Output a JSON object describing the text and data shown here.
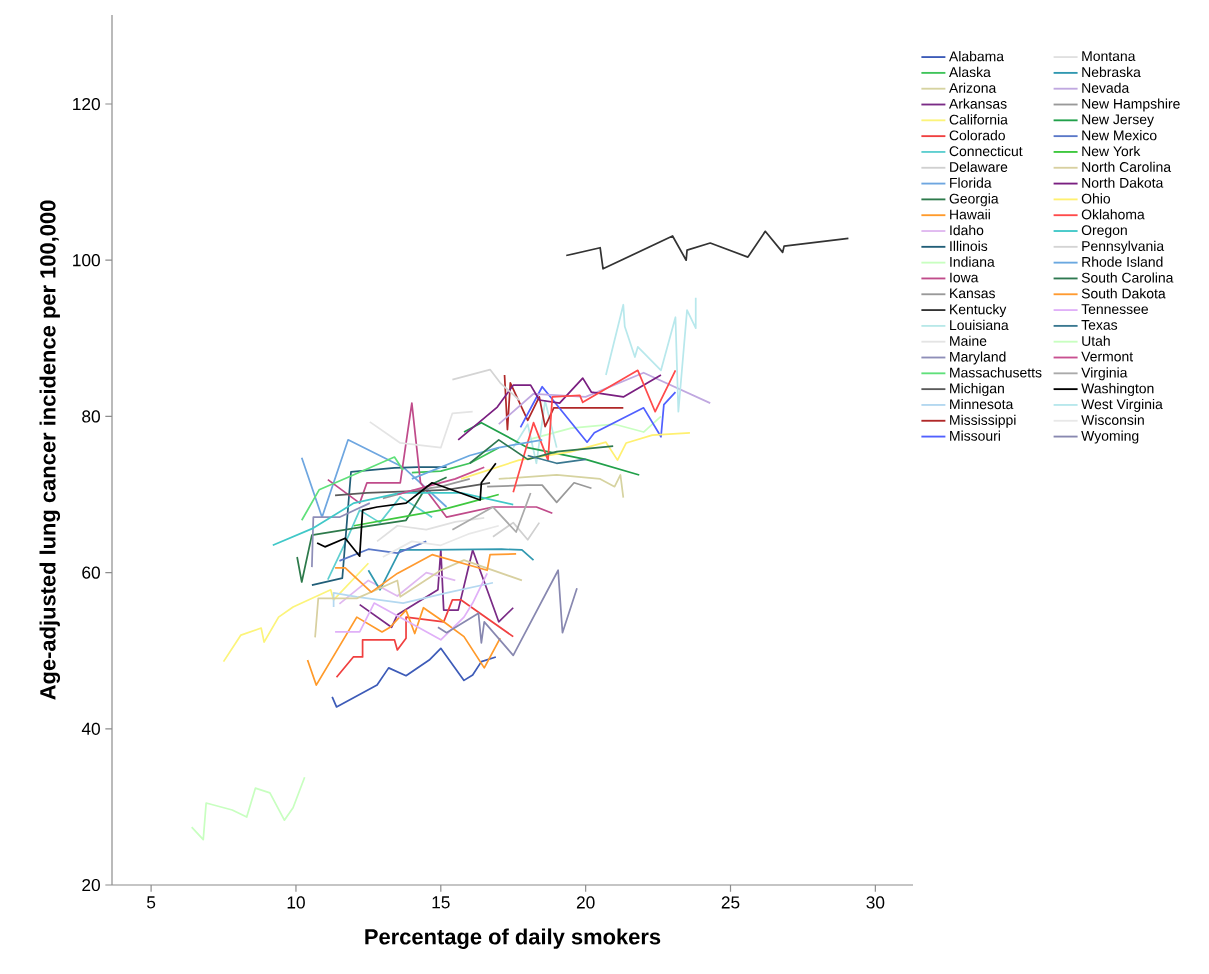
{
  "chart_data": {
    "type": "line",
    "xlabel": "Percentage of daily smokers",
    "ylabel": "Age-adjusted lung cancer incidence per 100,000",
    "xlim": [
      3.65,
      31.3
    ],
    "ylim": [
      20,
      131.4
    ],
    "xticks": [
      5,
      10,
      15,
      20,
      25,
      30
    ],
    "yticks": [
      20,
      40,
      60,
      80,
      100,
      120
    ],
    "grid": false,
    "legend": "top right",
    "series": [
      {
        "name": "Alabama",
        "color": "#3d5bb8",
        "x": [
          11.25,
          11.4,
          12.8,
          13.2,
          13.8,
          14.6,
          15.0,
          15.8,
          16.1,
          16.4,
          16.9
        ],
        "values": [
          44.1,
          42.8,
          45.6,
          47.8,
          46.8,
          48.8,
          50.3,
          46.2,
          46.9,
          48.6,
          49.2
        ]
      },
      {
        "name": "Alaska",
        "color": "#3fc45a",
        "x": [
          14.0,
          15.0,
          16.0,
          17.0
        ],
        "values": [
          72.8,
          73.0,
          74.0,
          76.0
        ]
      },
      {
        "name": "Arizona",
        "color": "#d6d3a0",
        "x": [
          17.0,
          19.0,
          20.5,
          21.0,
          21.2,
          21.3
        ],
        "values": [
          72.0,
          72.5,
          72.0,
          71.0,
          72.5,
          69.6
        ]
      },
      {
        "name": "Arkansas",
        "color": "#7a2b86",
        "x": [
          12.2,
          13.3,
          13.5,
          14.9,
          15.0,
          15.1,
          15.6,
          16.1,
          17.0,
          17.5
        ],
        "values": [
          55.9,
          53.0,
          54.6,
          57.8,
          62.9,
          55.2,
          55.2,
          62.9,
          53.7,
          55.5
        ]
      },
      {
        "name": "California",
        "color": "#fcf47a",
        "x": [
          7.5,
          8.1,
          8.8,
          8.9,
          9.4,
          9.9,
          11.2,
          11.3,
          12.5
        ],
        "values": [
          48.6,
          52.0,
          52.9,
          51.1,
          54.3,
          55.6,
          57.8,
          56.5,
          61.2
        ]
      },
      {
        "name": "Colorado",
        "color": "#f04040",
        "x": [
          11.4,
          11.98,
          12.3,
          12.3,
          13.4,
          13.5,
          13.8,
          13.8,
          15.1,
          15.4,
          15.7,
          17.5
        ],
        "values": [
          46.6,
          49.2,
          49.2,
          51.4,
          51.4,
          50.1,
          51.6,
          54.3,
          53.7,
          56.5,
          56.5,
          51.8
        ]
      },
      {
        "name": "Connecticut",
        "color": "#5fcfd0",
        "x": [
          11.1,
          11.8,
          12.2,
          12.9,
          13.6,
          14.7
        ],
        "values": [
          59.1,
          64.6,
          68.0,
          66.4,
          69.7,
          67.1
        ]
      },
      {
        "name": "Delaware",
        "color": "#d0d0d0",
        "x": [
          16.8,
          17.5,
          18.0,
          18.4
        ],
        "values": [
          64.6,
          66.4,
          64.2,
          66.4
        ]
      },
      {
        "name": "Florida",
        "color": "#6ea6e0",
        "x": [
          10.2,
          10.9,
          11.8,
          13.7,
          15.2
        ],
        "values": [
          74.7,
          67.1,
          77.0,
          73.5,
          68.4
        ]
      },
      {
        "name": "Georgia",
        "color": "#2d7a4b",
        "x": [
          10.04,
          10.2,
          10.55,
          12.2,
          13.8,
          14.5,
          15.2
        ],
        "values": [
          62.0,
          58.8,
          64.8,
          65.8,
          66.7,
          71.0,
          72.2
        ]
      },
      {
        "name": "Hawaii",
        "color": "#ff9a2a",
        "x": [
          10.4,
          10.7,
          12.1,
          12.97,
          13.25,
          13.8,
          14.1,
          14.4,
          15.1,
          15.8,
          16.5,
          17.05
        ],
        "values": [
          48.8,
          45.6,
          54.3,
          52.4,
          53.0,
          55.2,
          52.2,
          55.5,
          53.7,
          51.8,
          47.8,
          51.6
        ]
      },
      {
        "name": "Idaho",
        "color": "#e0b8f0",
        "x": [
          11.5,
          12.5,
          13.5,
          14.5,
          15.5
        ],
        "values": [
          56.0,
          59.0,
          57.0,
          60.0,
          59.0
        ]
      },
      {
        "name": "Illinois",
        "color": "#215e78",
        "x": [
          10.55,
          11.6,
          11.9,
          13.4,
          14.2,
          15.2
        ],
        "values": [
          58.4,
          59.3,
          72.9,
          73.4,
          73.5,
          73.5
        ]
      },
      {
        "name": "Indiana",
        "color": "#c8ffc0",
        "x": [
          18.0,
          19.5,
          21.0,
          22.0,
          22.6
        ],
        "values": [
          77.0,
          78.5,
          79.0,
          78.0,
          80.0
        ]
      },
      {
        "name": "Iowa",
        "color": "#c04b8a",
        "x": [
          11.1,
          12.2,
          12.45,
          13.6,
          14.0,
          14.3,
          15.2,
          16.8,
          18.3,
          18.85
        ],
        "values": [
          71.9,
          68.9,
          71.5,
          71.5,
          81.7,
          71.5,
          67.1,
          68.4,
          68.4,
          67.6
        ]
      },
      {
        "name": "Kansas",
        "color": "#999999",
        "x": [
          16.6,
          18.0,
          18.5,
          19.0,
          19.6,
          20.2
        ],
        "values": [
          71.0,
          71.2,
          71.2,
          69.0,
          71.5,
          70.8
        ]
      },
      {
        "name": "Kentucky",
        "color": "#333333",
        "x": [
          19.33,
          20.5,
          20.6,
          23.0,
          23.47,
          23.5,
          24.3,
          25.6,
          26.2,
          26.8,
          26.85,
          29.07
        ],
        "values": [
          100.6,
          101.6,
          98.9,
          103.1,
          100.0,
          101.3,
          102.2,
          100.4,
          103.7,
          101.0,
          101.8,
          102.8
        ]
      },
      {
        "name": "Louisiana",
        "color": "#b8e8e8",
        "x": [
          17.5,
          18.0,
          18.3,
          18.6,
          19.0
        ],
        "values": [
          76.0,
          79.0,
          74.0,
          82.0,
          76.0
        ]
      },
      {
        "name": "Maine",
        "color": "#e4e4e4",
        "x": [
          12.55,
          13.6,
          15.0,
          15.4,
          16.1
        ],
        "values": [
          79.3,
          76.6,
          76.0,
          80.4,
          80.6
        ]
      },
      {
        "name": "Maryland",
        "color": "#8e8eb8",
        "x": [
          10.55,
          10.6,
          11.5,
          12.55
        ],
        "values": [
          60.7,
          67.1,
          67.1,
          68.9
        ]
      },
      {
        "name": "Massachusetts",
        "color": "#5fe07a",
        "x": [
          10.2,
          10.8,
          11.8,
          13.4,
          13.7
        ],
        "values": [
          66.7,
          70.6,
          72.2,
          74.8,
          73.1
        ]
      },
      {
        "name": "Michigan",
        "color": "#5a5a5a",
        "x": [
          11.35,
          12.45,
          15.2,
          16.7
        ],
        "values": [
          69.9,
          70.2,
          70.6,
          71.5
        ]
      },
      {
        "name": "Minnesota",
        "color": "#b4d8f0",
        "x": [
          11.3,
          11.3,
          12.1,
          13.7,
          15.2,
          16.8
        ],
        "values": [
          55.6,
          57.4,
          56.9,
          56.1,
          57.4,
          58.7
        ]
      },
      {
        "name": "Mississippi",
        "color": "#b02828",
        "x": [
          17.2,
          17.3,
          17.4,
          18.0,
          18.4,
          18.6,
          18.9,
          21.3
        ],
        "values": [
          85.3,
          78.3,
          84.3,
          79.5,
          82.5,
          78.7,
          81.1,
          81.1
        ]
      },
      {
        "name": "Missouri",
        "color": "#5060ff",
        "x": [
          17.75,
          18.5,
          20.05,
          20.3,
          22.0,
          22.6,
          22.7,
          23.1
        ],
        "values": [
          78.6,
          83.8,
          76.7,
          77.9,
          81.1,
          77.4,
          81.5,
          83.1
        ]
      },
      {
        "name": "Montana",
        "color": "#e0e0e0",
        "x": [
          12.8,
          13.5,
          14.5,
          15.5,
          16.5
        ],
        "values": [
          64.0,
          66.0,
          65.5,
          66.5,
          67.0
        ]
      },
      {
        "name": "Nebraska",
        "color": "#3098b0",
        "x": [
          12.5,
          12.9,
          13.6,
          14.6,
          17.1,
          17.8,
          18.2
        ],
        "values": [
          60.3,
          57.8,
          62.9,
          62.9,
          63.0,
          62.9,
          61.6
        ]
      },
      {
        "name": "Nevada",
        "color": "#c0a8e0",
        "x": [
          17.0,
          18.2,
          20.0,
          22.0,
          24.3
        ],
        "values": [
          79.0,
          82.9,
          82.5,
          85.6,
          81.7
        ]
      },
      {
        "name": "New Hampshire",
        "color": "#999999",
        "x": [
          13.0,
          14.0,
          15.0,
          16.0
        ],
        "values": [
          69.5,
          70.5,
          71.0,
          72.0
        ]
      },
      {
        "name": "New Jersey",
        "color": "#21a04a",
        "x": [
          15.8,
          16.4,
          18.0,
          20.0,
          21.85
        ],
        "values": [
          78.0,
          79.2,
          76.0,
          74.5,
          72.5
        ]
      },
      {
        "name": "New Mexico",
        "color": "#5a78c8",
        "x": [
          11.5,
          12.5,
          13.5,
          14.5
        ],
        "values": [
          61.5,
          63.0,
          62.5,
          64.0
        ]
      },
      {
        "name": "New York",
        "color": "#3fc83f",
        "x": [
          12.0,
          13.5,
          15.0,
          16.0,
          17.0
        ],
        "values": [
          66.0,
          67.0,
          68.0,
          69.0,
          70.0
        ]
      },
      {
        "name": "North Carolina",
        "color": "#d8d0a0",
        "x": [
          10.66,
          10.77,
          12.1,
          13.5,
          13.6,
          15.0,
          15.8,
          16.8,
          17.8
        ],
        "values": [
          51.7,
          56.7,
          56.7,
          59.0,
          56.9,
          60.3,
          61.6,
          60.3,
          59.0
        ]
      },
      {
        "name": "North Dakota",
        "color": "#7a1f80",
        "x": [
          15.6,
          16.95,
          17.5,
          18.1,
          18.4,
          19.1,
          19.9,
          20.2,
          21.3,
          22.6
        ],
        "values": [
          77.0,
          81.2,
          84.0,
          84.0,
          82.1,
          81.7,
          84.9,
          83.1,
          82.5,
          85.3
        ]
      },
      {
        "name": "Ohio",
        "color": "#fff070",
        "x": [
          15.7,
          17.7,
          19.5,
          20.7,
          21.1,
          21.4,
          22.3,
          23.6
        ],
        "values": [
          72.0,
          74.4,
          75.5,
          76.7,
          74.4,
          76.6,
          77.6,
          77.9
        ]
      },
      {
        "name": "Oklahoma",
        "color": "#ff4a4a",
        "x": [
          17.5,
          18.2,
          18.7,
          18.85,
          19.8,
          19.9,
          21.8,
          22.4,
          23.1
        ],
        "values": [
          70.3,
          79.2,
          74.4,
          82.5,
          82.7,
          81.8,
          85.9,
          80.6,
          85.9
        ]
      },
      {
        "name": "Oregon",
        "color": "#40c8c8",
        "x": [
          9.2,
          10.6,
          12.0,
          13.6,
          15.7,
          17.5
        ],
        "values": [
          63.5,
          65.7,
          68.9,
          70.2,
          70.2,
          68.7
        ]
      },
      {
        "name": "Pennsylvania",
        "color": "#d4d4d4",
        "x": [
          15.4,
          16.7,
          17.05,
          17.7
        ],
        "values": [
          84.7,
          86.0,
          84.3,
          82.1
        ]
      },
      {
        "name": "Rhode Island",
        "color": "#6aa8e0",
        "x": [
          14.0,
          15.0,
          16.0,
          17.0,
          18.5
        ],
        "values": [
          72.0,
          73.5,
          75.0,
          76.0,
          77.0
        ]
      },
      {
        "name": "South Carolina",
        "color": "#2e7850",
        "x": [
          16.0,
          17.0,
          18.0,
          19.0,
          20.95
        ],
        "values": [
          74.0,
          77.0,
          74.5,
          75.5,
          76.2
        ]
      },
      {
        "name": "South Dakota",
        "color": "#ff9a30",
        "x": [
          11.35,
          11.7,
          12.6,
          13.5,
          14.7,
          16.6,
          16.7,
          17.6
        ],
        "values": [
          60.6,
          60.6,
          57.5,
          59.9,
          62.3,
          60.3,
          62.3,
          62.4
        ]
      },
      {
        "name": "Tennessee",
        "color": "#e0b0f8",
        "x": [
          11.35,
          12.2,
          12.7,
          15.0,
          15.8,
          16.1,
          16.6
        ],
        "values": [
          52.4,
          52.4,
          56.1,
          51.4,
          54.3,
          56.1,
          59.9
        ]
      },
      {
        "name": "Texas",
        "color": "#3a7890",
        "x": [
          18.0,
          19.0,
          20.0
        ],
        "values": [
          75.0,
          74.0,
          74.5
        ]
      },
      {
        "name": "Utah",
        "color": "#c8ffc0",
        "x": [
          6.4,
          6.8,
          6.9,
          7.8,
          8.3,
          8.6,
          9.1,
          9.6,
          9.9,
          10.3
        ],
        "values": [
          27.4,
          25.8,
          30.5,
          29.6,
          28.7,
          32.4,
          31.8,
          28.3,
          29.9,
          33.8
        ]
      },
      {
        "name": "Vermont",
        "color": "#c85090",
        "x": [
          13.5,
          14.5,
          15.5,
          16.5
        ],
        "values": [
          70.0,
          71.0,
          72.0,
          73.5
        ]
      },
      {
        "name": "Virginia",
        "color": "#aaaaaa",
        "x": [
          15.4,
          16.8,
          17.6,
          18.1
        ],
        "values": [
          65.5,
          68.4,
          65.2,
          70.2
        ]
      },
      {
        "name": "Washington",
        "color": "#000000",
        "x": [
          10.73,
          11.0,
          11.7,
          12.2,
          12.3,
          12.8,
          13.8,
          14.7,
          16.36,
          16.4,
          16.9
        ],
        "values": [
          63.8,
          63.3,
          64.4,
          62.1,
          68.0,
          68.4,
          68.9,
          71.5,
          69.3,
          71.5,
          74.0
        ]
      },
      {
        "name": "West Virginia",
        "color": "#b8e8ec",
        "x": [
          20.7,
          21.3,
          21.35,
          21.7,
          21.8,
          22.6,
          23.1,
          23.2,
          23.5,
          23.8,
          23.8
        ],
        "values": [
          85.3,
          94.3,
          91.5,
          87.6,
          88.9,
          85.9,
          92.7,
          80.6,
          93.6,
          91.3,
          95.2
        ]
      },
      {
        "name": "Wisconsin",
        "color": "#e8e8e8",
        "x": [
          13.0,
          14.0,
          15.0,
          16.0,
          17.0
        ],
        "values": [
          62.0,
          64.0,
          63.5,
          65.0,
          66.0
        ]
      },
      {
        "name": "Wyoming",
        "color": "#8888b0",
        "x": [
          14.9,
          15.2,
          16.3,
          16.4,
          16.5,
          17.5,
          19.05,
          19.2,
          19.7
        ],
        "values": [
          53.0,
          52.3,
          54.8,
          51.0,
          53.7,
          49.4,
          60.3,
          52.3,
          58.0
        ]
      }
    ]
  }
}
